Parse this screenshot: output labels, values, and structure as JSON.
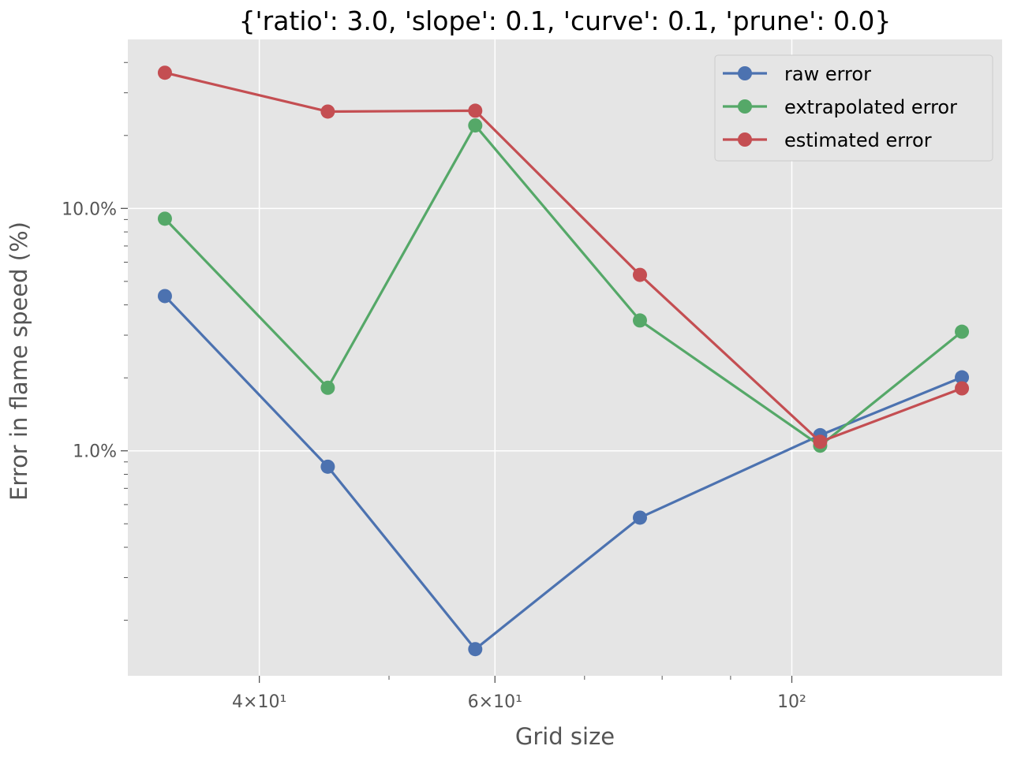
{
  "chart_data": {
    "type": "line",
    "title": "{'ratio': 3.0, 'slope': 0.1, 'curve': 0.1, 'prune': 0.0}",
    "xlabel": "Grid size",
    "ylabel": "Error in flame speed (%)",
    "xscale": "log",
    "yscale": "log",
    "xlim": [
      31.9,
      143.6
    ],
    "ylim": [
      0.118,
      49.8
    ],
    "x_ticks": [
      {
        "value": 40,
        "label": "4×10¹"
      },
      {
        "value": 60,
        "label": "6×10¹"
      },
      {
        "value": 100,
        "label": "10²"
      }
    ],
    "y_ticks": [
      {
        "value": 1,
        "label": "1.0%"
      },
      {
        "value": 10,
        "label": "10.0%"
      }
    ],
    "grid": true,
    "legend_position": "top-right",
    "background": "#e5e5e5",
    "x": [
      34,
      45,
      58,
      77,
      105,
      134
    ],
    "series": [
      {
        "name": "raw error",
        "color": "#4c72b0",
        "values": [
          4.35,
          0.86,
          0.152,
          0.53,
          1.16,
          2.01
        ]
      },
      {
        "name": "extrapolated error",
        "color": "#55a868",
        "values": [
          9.07,
          1.82,
          22.0,
          3.45,
          1.05,
          3.1
        ]
      },
      {
        "name": "estimated error",
        "color": "#c44e52",
        "values": [
          36.3,
          25.1,
          25.3,
          5.32,
          1.09,
          1.81
        ]
      }
    ]
  }
}
